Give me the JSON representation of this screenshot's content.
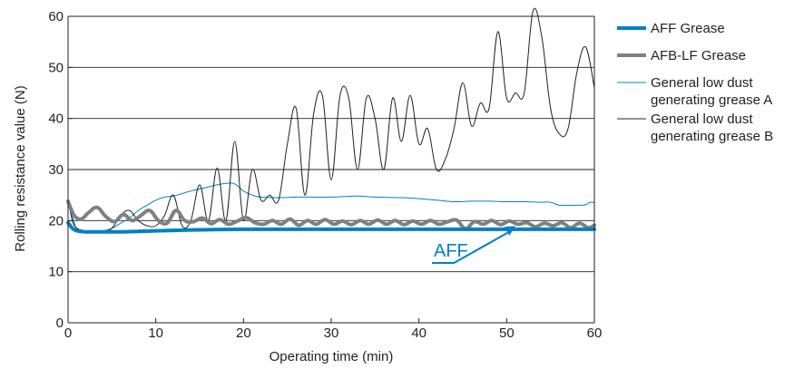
{
  "chart_data": {
    "type": "line",
    "title": "",
    "xlabel": "Operating time (min)",
    "ylabel": "Rolling resistance value (N)",
    "xlim": [
      0,
      60
    ],
    "ylim": [
      0,
      60
    ],
    "x_ticks": [
      "0",
      "10",
      "20",
      "30",
      "40",
      "50",
      "60"
    ],
    "y_ticks": [
      "0",
      "10",
      "20",
      "30",
      "40",
      "50",
      "60"
    ],
    "grid": "horizontal",
    "legend_position": "right",
    "annotation": {
      "text": "AFF",
      "target_series": "AFF Grease",
      "arrow_to": [
        51,
        18.4
      ]
    },
    "series": [
      {
        "name": "AFF Grease",
        "legend_lines": [
          "AFF Grease"
        ],
        "color": "#0080c6",
        "width": "thick",
        "x": [
          0,
          0.5,
          1,
          2,
          4,
          6,
          8,
          10,
          15,
          20,
          25,
          30,
          35,
          40,
          45,
          50,
          55,
          60
        ],
        "y": [
          19.6,
          18.5,
          18.0,
          17.8,
          17.8,
          17.8,
          17.9,
          18.0,
          18.2,
          18.3,
          18.3,
          18.3,
          18.3,
          18.3,
          18.3,
          18.3,
          18.3,
          18.3
        ]
      },
      {
        "name": "AFB-LF Grease",
        "legend_lines": [
          "AFB-LF Grease"
        ],
        "color": "#808080",
        "width": "thick",
        "x": [
          0,
          0.7,
          1.5,
          2.3,
          3.3,
          4.3,
          5.3,
          6.3,
          7.3,
          8.3,
          9.3,
          10.3,
          11.3,
          12.3,
          13.3,
          14.3,
          15.3,
          16.3,
          17.3,
          18.3,
          19.3,
          20.3,
          21.3,
          22.3,
          23.3,
          24.3,
          25.3,
          26.3,
          27.3,
          28.3,
          29.3,
          30.3,
          31.3,
          32.3,
          33.3,
          34.3,
          35.3,
          36.3,
          37.3,
          38.3,
          39.3,
          40.3,
          41.3,
          42.3,
          43.3,
          44.3,
          45.3,
          46.3,
          47.3,
          48.3,
          49.3,
          50.3,
          51.3,
          52.3,
          53.3,
          54.3,
          55.3,
          56.3,
          57.3,
          58.3,
          59.3,
          60
        ],
        "y": [
          23.8,
          21.0,
          20.3,
          21.5,
          22.6,
          20.8,
          19.8,
          21.2,
          20.0,
          21.0,
          22.0,
          20.0,
          19.5,
          22.0,
          20.0,
          19.8,
          20.5,
          19.4,
          20.2,
          19.3,
          19.9,
          20.6,
          19.6,
          19.3,
          20.0,
          19.3,
          20.3,
          19.1,
          20.0,
          19.3,
          20.2,
          19.3,
          19.9,
          19.2,
          20.0,
          19.3,
          20.1,
          19.3,
          20.0,
          19.2,
          19.9,
          19.3,
          20.0,
          19.3,
          19.8,
          20.1,
          18.4,
          19.8,
          19.3,
          20.0,
          19.2,
          19.9,
          19.3,
          19.6,
          18.8,
          19.5,
          19.0,
          19.6,
          18.6,
          19.5,
          18.6,
          19.1
        ]
      },
      {
        "name": "General low dust generating grease A",
        "legend_lines": [
          "General low dust",
          "generating grease A"
        ],
        "color": "#0080c6",
        "width": "thin",
        "x": [
          0,
          1,
          2,
          3,
          4,
          5,
          6,
          7,
          8,
          9,
          10,
          11,
          12,
          13,
          14,
          15,
          16,
          17,
          18,
          19,
          20,
          21,
          22,
          24,
          26,
          28,
          30,
          33,
          35,
          38,
          40,
          42,
          44,
          46,
          48,
          50,
          52,
          54,
          55,
          56,
          57,
          58,
          59,
          59.5,
          60
        ],
        "y": [
          24.0,
          18.2,
          18.0,
          17.9,
          18.0,
          18.5,
          19.5,
          20.5,
          22.0,
          23.0,
          24.0,
          24.6,
          24.8,
          25.3,
          25.8,
          26.2,
          26.6,
          27.0,
          27.3,
          27.2,
          25.8,
          25.0,
          24.6,
          24.5,
          24.6,
          24.6,
          24.6,
          24.8,
          24.6,
          24.5,
          24.3,
          24.0,
          23.7,
          23.8,
          23.8,
          23.7,
          23.7,
          23.6,
          23.6,
          23.0,
          23.0,
          23.0,
          23.1,
          23.6,
          23.5
        ]
      },
      {
        "name": "General low dust generating grease B",
        "legend_lines": [
          "General low dust",
          "generating grease B"
        ],
        "color": "#231f20",
        "width": "thin",
        "x": [
          0,
          0.5,
          1,
          2,
          3,
          4,
          5,
          6,
          7,
          8,
          9,
          10,
          11,
          12,
          13,
          14,
          15,
          16,
          17,
          18,
          19,
          20,
          21,
          22,
          23,
          24,
          25,
          26,
          27,
          28,
          29,
          30,
          31,
          32,
          33,
          34,
          35,
          36,
          37,
          38,
          39,
          40,
          41,
          42,
          43,
          44,
          45,
          46,
          47,
          48,
          49,
          50,
          51,
          52,
          53,
          54,
          55,
          56,
          57,
          58,
          59,
          60
        ],
        "y": [
          24.0,
          20.0,
          18.5,
          18.0,
          18.0,
          17.8,
          18.5,
          21.0,
          22.0,
          20.0,
          19.0,
          19.0,
          21.0,
          25.0,
          19.0,
          20.0,
          27.0,
          20.0,
          30.3,
          20.0,
          35.5,
          20.0,
          30.0,
          24.0,
          25.0,
          24.0,
          35.0,
          42.0,
          25.0,
          41.0,
          44.5,
          28.0,
          44.5,
          44.0,
          30.0,
          44.0,
          40.0,
          30.0,
          44.0,
          35.5,
          44.5,
          35.0,
          38.0,
          30.0,
          32.0,
          38.0,
          47.0,
          38.5,
          43.0,
          42.0,
          57.0,
          44.0,
          45.0,
          45.0,
          61.0,
          56.0,
          42.0,
          37.0,
          38.0,
          49.0,
          54.0,
          46.0
        ]
      }
    ]
  }
}
